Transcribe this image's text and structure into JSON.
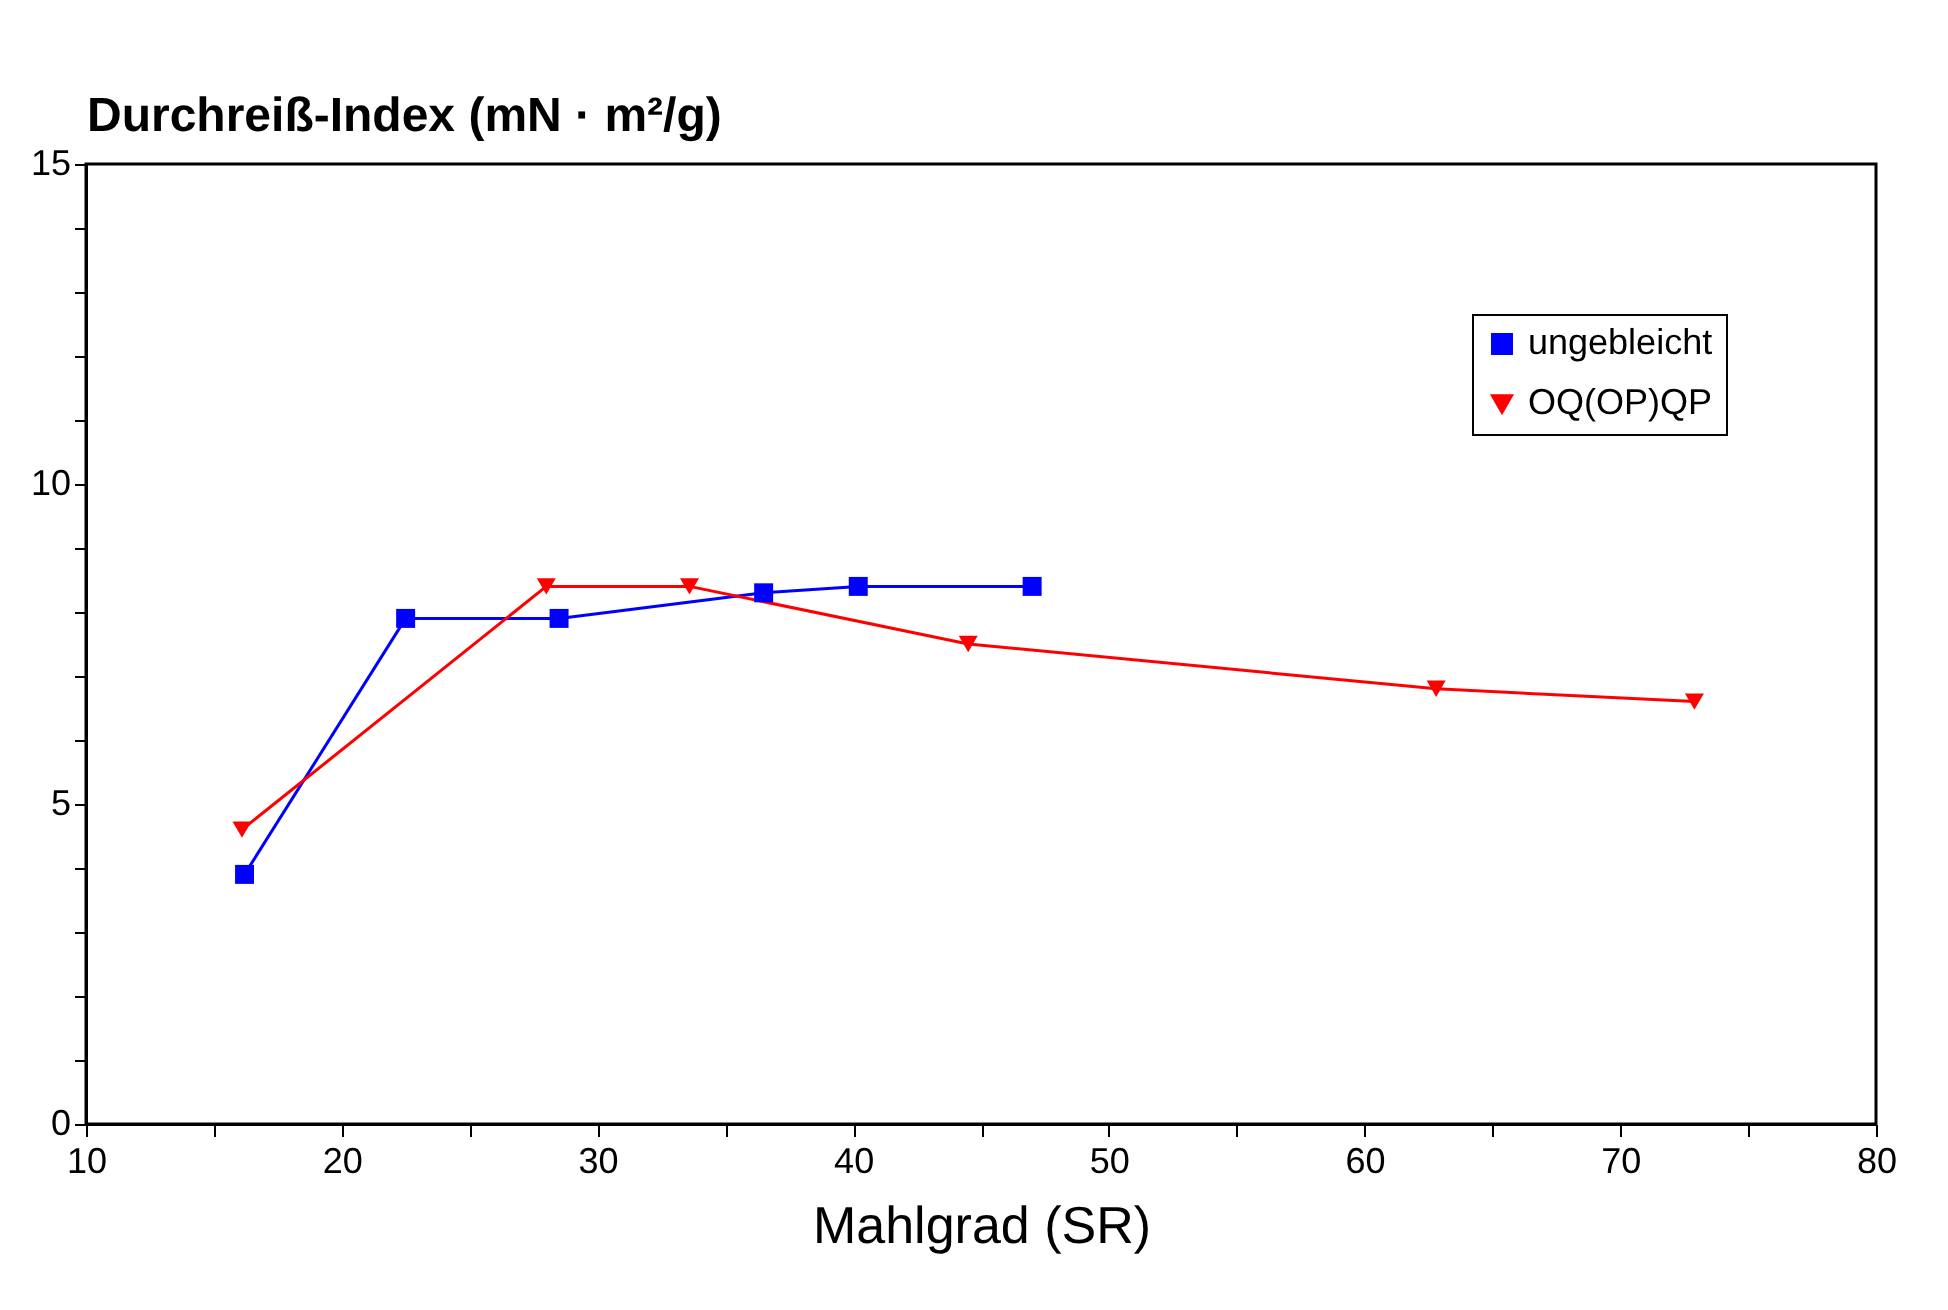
{
  "chart_data": {
    "type": "line",
    "ylabel": "Durchreiß-Index (mN · m²/g)",
    "xlabel": "Mahlgrad (SR)",
    "series": [
      {
        "name": "ungebleicht",
        "color": "#0000ff",
        "marker": "square",
        "x": [
          16.2,
          22.5,
          28.5,
          36.5,
          40.2,
          47.0
        ],
        "values": [
          3.9,
          7.9,
          7.9,
          8.3,
          8.4,
          8.4
        ]
      },
      {
        "name": "OQ(OP)QP",
        "color": "#ff0000",
        "marker": "triangle",
        "x": [
          16.1,
          28.0,
          33.6,
          44.5,
          62.8,
          72.9
        ],
        "values": [
          4.6,
          8.4,
          8.4,
          7.5,
          6.8,
          6.6
        ]
      }
    ],
    "xlim": [
      10,
      80
    ],
    "xticks": [
      10,
      {
        "value": 15,
        "label": null
      },
      20,
      {
        "value": 25,
        "label": null
      },
      30,
      {
        "value": 35,
        "label": null
      },
      40,
      {
        "value": 45,
        "label": null
      },
      50,
      {
        "value": 55,
        "label": null
      },
      60,
      {
        "value": 65,
        "label": null
      },
      70,
      {
        "value": 75,
        "label": null
      },
      80
    ],
    "ylim": [
      0,
      15
    ],
    "yticks": [
      0,
      {
        "value": 1,
        "label": null
      },
      {
        "value": 2,
        "label": null
      },
      {
        "value": 3,
        "label": null
      },
      {
        "value": 4,
        "label": null
      },
      5,
      {
        "value": 6,
        "label": null
      },
      {
        "value": 7,
        "label": null
      },
      {
        "value": 8,
        "label": null
      },
      {
        "value": 9,
        "label": null
      },
      10,
      {
        "value": 11,
        "label": null
      },
      {
        "value": 12,
        "label": null
      },
      {
        "value": 13,
        "label": null
      },
      {
        "value": 14,
        "label": null
      },
      15
    ],
    "grid": false,
    "legend": "top right",
    "line_style": "solid"
  }
}
